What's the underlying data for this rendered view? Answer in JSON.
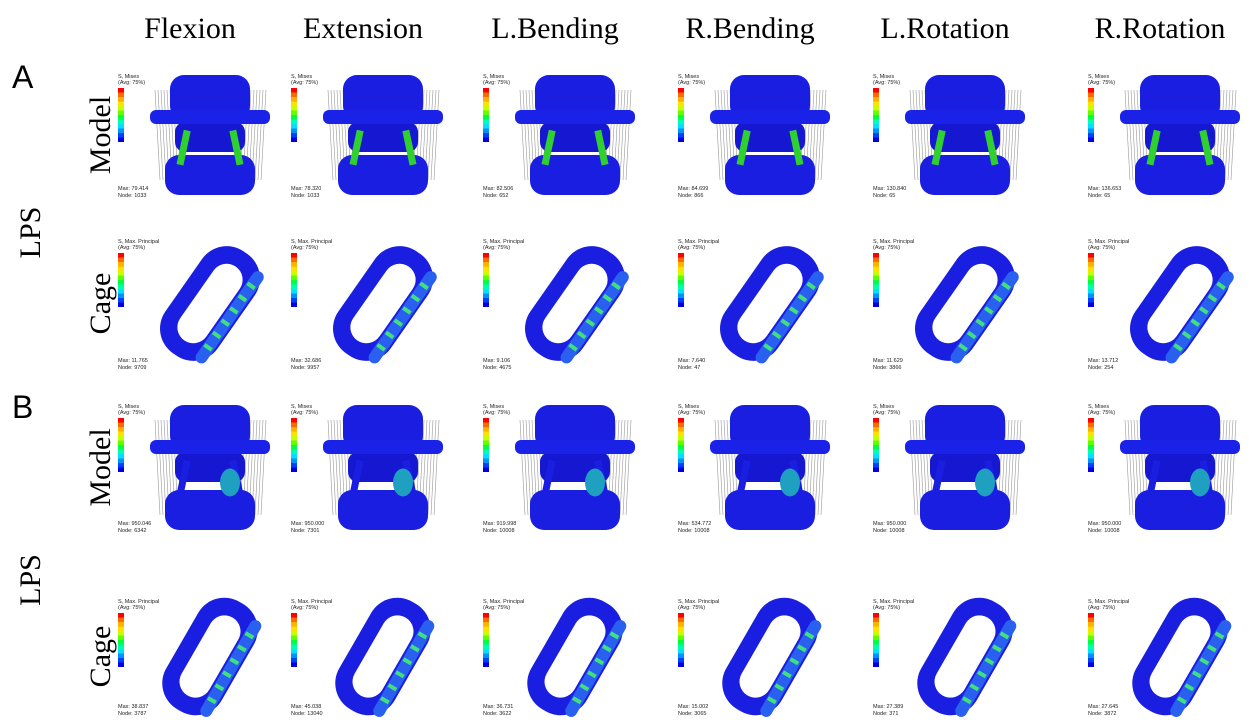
{
  "columns": [
    "Flexion",
    "Extension",
    "L.Bending",
    "R.Bending",
    "L.Rotation",
    "R.Rotation"
  ],
  "groups": [
    {
      "label": "A",
      "condition": "LPS",
      "rows": [
        {
          "label": "Model",
          "panels": [
            {
              "variable": "S, Mises",
              "avg": "(Avg: 75%)",
              "max": "Max: 79.414",
              "node": "Node: 1033"
            },
            {
              "variable": "S, Mises",
              "avg": "(Avg: 75%)",
              "max": "Max: 78.320",
              "node": "Node: 1033"
            },
            {
              "variable": "S, Mises",
              "avg": "(Avg: 75%)",
              "max": "Max: 82.506",
              "node": "Node: 652"
            },
            {
              "variable": "S, Mises",
              "avg": "(Avg: 75%)",
              "max": "Max: 84.699",
              "node": "Node: 866"
            },
            {
              "variable": "S, Mises",
              "avg": "(Avg: 75%)",
              "max": "Max: 130.840",
              "node": "Node: 65"
            },
            {
              "variable": "S, Mises",
              "avg": "(Avg: 75%)",
              "max": "Max: 136.653",
              "node": "Node: 65"
            }
          ]
        },
        {
          "label": "Cage",
          "panels": [
            {
              "variable": "S, Max. Principal",
              "avg": "(Avg: 75%)",
              "max": "Max: 11.765",
              "node": "Node: 9709"
            },
            {
              "variable": "S, Max. Principal",
              "avg": "(Avg: 75%)",
              "max": "Max: 32.686",
              "node": "Node: 9957"
            },
            {
              "variable": "S, Max. Principal",
              "avg": "(Avg: 75%)",
              "max": "Max: 9.106",
              "node": "Node: 4675"
            },
            {
              "variable": "S, Max. Principal",
              "avg": "(Avg: 75%)",
              "max": "Max: 7.640",
              "node": "Node: 47"
            },
            {
              "variable": "S, Max. Principal",
              "avg": "(Avg: 75%)",
              "max": "Max: 11.629",
              "node": "Node: 3866"
            },
            {
              "variable": "S, Max. Principal",
              "avg": "(Avg: 75%)",
              "max": "Max: 13.712",
              "node": "Node: 254"
            }
          ]
        }
      ]
    },
    {
      "label": "B",
      "condition": "LPS",
      "rows": [
        {
          "label": "Model",
          "panels": [
            {
              "variable": "S, Mises",
              "avg": "(Avg: 75%)",
              "max": "Max: 950.046",
              "node": "Node: 6342"
            },
            {
              "variable": "S, Mises",
              "avg": "(Avg: 75%)",
              "max": "Max: 950.000",
              "node": "Node: 7301"
            },
            {
              "variable": "S, Mises",
              "avg": "(Avg: 75%)",
              "max": "Max: 919.998",
              "node": "Node: 10008"
            },
            {
              "variable": "S, Mises",
              "avg": "(Avg: 75%)",
              "max": "Max: 534.772",
              "node": "Node: 10008"
            },
            {
              "variable": "S, Mises",
              "avg": "(Avg: 75%)",
              "max": "Max: 950.000",
              "node": "Node: 10008"
            },
            {
              "variable": "S, Mises",
              "avg": "(Avg: 75%)",
              "max": "Max: 950.000",
              "node": "Node: 10008"
            }
          ]
        },
        {
          "label": "Cage",
          "panels": [
            {
              "variable": "S, Max. Principal",
              "avg": "(Avg: 75%)",
              "max": "Max: 38.837",
              "node": "Node: 3787"
            },
            {
              "variable": "S, Max. Principal",
              "avg": "(Avg: 75%)",
              "max": "Max: 45.038",
              "node": "Node: 13040"
            },
            {
              "variable": "S, Max. Principal",
              "avg": "(Avg: 75%)",
              "max": "Max: 36.731",
              "node": "Node: 3622"
            },
            {
              "variable": "S, Max. Principal",
              "avg": "(Avg: 75%)",
              "max": "Max: 15.002",
              "node": "Node: 3065"
            },
            {
              "variable": "S, Max. Principal",
              "avg": "(Avg: 75%)",
              "max": "Max: 27.389",
              "node": "Node: 371"
            },
            {
              "variable": "S, Max. Principal",
              "avg": "(Avg: 75%)",
              "max": "Max: 27.645",
              "node": "Node: 3872"
            }
          ]
        }
      ]
    }
  ]
}
